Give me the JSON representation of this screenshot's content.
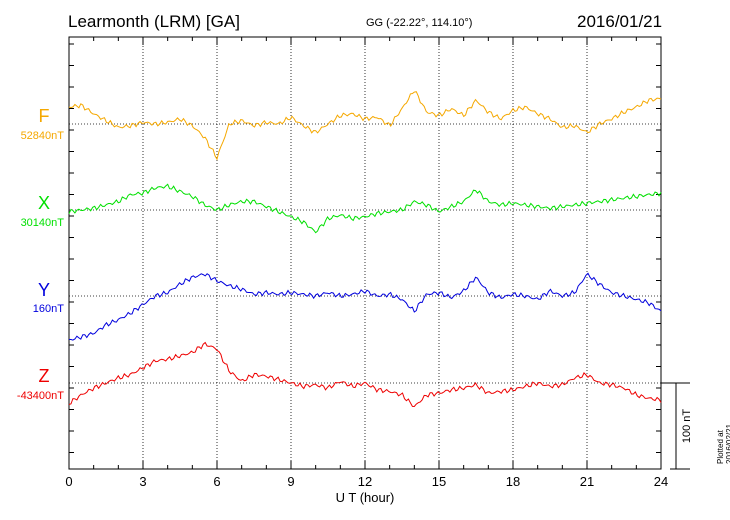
{
  "header": {
    "station": "Learmonth (LRM)  [GA]",
    "coords": "GG (-22.22°, 114.10°)",
    "date": "2016/01/21"
  },
  "footer": {
    "plotted": "Plotted at 2016/02/21 01:35 UT"
  },
  "chart_data": {
    "type": "line",
    "title": "Learmonth (LRM)  [GA]",
    "xlabel": "U T (hour)",
    "ylabel": "",
    "xlim": [
      0,
      24
    ],
    "x_ticks": [
      "0",
      "3",
      "6",
      "9",
      "12",
      "15",
      "18",
      "21",
      "24"
    ],
    "scale_bar": {
      "label": "100 nT",
      "value": 100
    },
    "grid": "dotted, every 3 hours and at each component baseline",
    "x": [
      0,
      0.5,
      1,
      1.5,
      2,
      2.5,
      3,
      3.5,
      4,
      4.5,
      5,
      5.5,
      6,
      6.5,
      7,
      7.5,
      8,
      8.5,
      9,
      9.5,
      10,
      10.5,
      11,
      11.5,
      12,
      12.5,
      13,
      13.5,
      14,
      14.5,
      15,
      15.5,
      16,
      16.5,
      17,
      17.5,
      18,
      18.5,
      19,
      19.5,
      20,
      20.5,
      21,
      21.5,
      22,
      22.5,
      23,
      23.5,
      24
    ],
    "series": [
      {
        "name": "F",
        "baseline_label": "52840nT",
        "color": "#f5a800",
        "values": [
          20,
          22,
          12,
          4,
          -4,
          -2,
          2,
          0,
          2,
          6,
          -2,
          -16,
          -40,
          0,
          4,
          -2,
          2,
          0,
          8,
          -2,
          -10,
          0,
          10,
          12,
          6,
          8,
          -2,
          18,
          40,
          14,
          10,
          18,
          10,
          28,
          14,
          6,
          16,
          20,
          12,
          6,
          -4,
          -2,
          -10,
          0,
          6,
          14,
          20,
          28,
          30
        ]
      },
      {
        "name": "X",
        "baseline_label": "30140nT",
        "color": "#00e000",
        "values": [
          -2,
          0,
          2,
          6,
          10,
          18,
          20,
          26,
          28,
          22,
          16,
          6,
          0,
          6,
          10,
          10,
          4,
          -2,
          -8,
          -14,
          -26,
          -10,
          -6,
          -10,
          -8,
          -4,
          -2,
          0,
          10,
          6,
          -2,
          4,
          10,
          24,
          10,
          6,
          8,
          6,
          4,
          2,
          4,
          6,
          8,
          10,
          12,
          14,
          16,
          18,
          20
        ]
      },
      {
        "name": "Y",
        "baseline_label": "160nT",
        "color": "#0000dd",
        "values": [
          -52,
          -48,
          -44,
          -34,
          -28,
          -20,
          -10,
          0,
          4,
          14,
          22,
          26,
          18,
          12,
          8,
          2,
          4,
          2,
          4,
          2,
          0,
          4,
          0,
          2,
          6,
          0,
          2,
          -4,
          -18,
          2,
          4,
          -2,
          6,
          22,
          4,
          -2,
          2,
          0,
          -4,
          6,
          0,
          4,
          26,
          14,
          4,
          0,
          -4,
          -8,
          -18
        ]
      },
      {
        "name": "Z",
        "baseline_label": "-43400nT",
        "color": "#ee0000",
        "values": [
          -24,
          -14,
          -6,
          0,
          6,
          10,
          18,
          26,
          28,
          32,
          36,
          46,
          40,
          14,
          2,
          10,
          8,
          4,
          0,
          -4,
          -2,
          -6,
          2,
          -4,
          0,
          -8,
          -10,
          -14,
          -28,
          -14,
          -12,
          -8,
          -6,
          -2,
          -12,
          -10,
          -8,
          -4,
          0,
          -4,
          -2,
          6,
          10,
          0,
          -2,
          -6,
          -14,
          -18,
          -20
        ]
      }
    ]
  }
}
